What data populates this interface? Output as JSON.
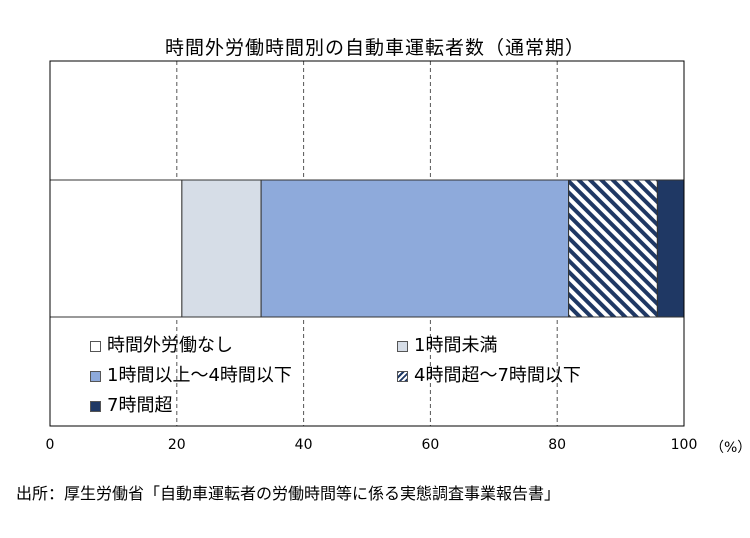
{
  "chart_data": {
    "type": "bar",
    "orientation": "horizontal",
    "stacked": true,
    "title": "時間外労働時間別の自動車運転者数（通常期）",
    "x_unit": "（%）",
    "xlim": [
      0,
      100
    ],
    "x_ticks": [
      "0",
      "20",
      "40",
      "60",
      "80",
      "100"
    ],
    "grid": true,
    "legend_position": "inside-bottom",
    "series": [
      {
        "name": "時間外労働なし",
        "value": 20.8,
        "color": "#ffffff",
        "pattern": "none"
      },
      {
        "name": "1時間未満",
        "value": 12.5,
        "color": "#d6dde7",
        "pattern": "none"
      },
      {
        "name": "1時間以上～4時間以下",
        "value": 48.5,
        "color": "#8eaadb",
        "pattern": "none"
      },
      {
        "name": "4時間超～7時間以下",
        "value": 14.0,
        "color": "#1f3864",
        "pattern": "diagonal-stripes"
      },
      {
        "name": "7時間超",
        "value": 4.2,
        "color": "#1f3864",
        "pattern": "none"
      }
    ]
  },
  "source": "出所：厚生労働省「自動車運転者の労働時間等に係る実態調査事業報告書」"
}
